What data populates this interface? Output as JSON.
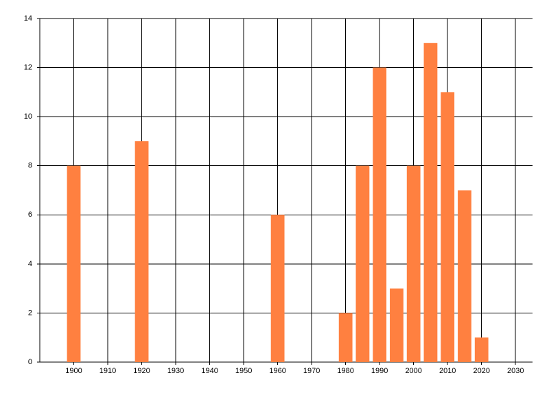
{
  "chart_data": {
    "type": "bar",
    "x": [
      1900,
      1920,
      1960,
      1980,
      1985,
      1990,
      1995,
      2000,
      2005,
      2010,
      2015,
      2020
    ],
    "values": [
      8,
      9,
      6,
      2,
      8,
      12,
      3,
      8,
      13,
      11,
      7,
      1
    ],
    "color": "#ff8040",
    "xlim": [
      1890,
      2035
    ],
    "xticks": [
      1900,
      1910,
      1920,
      1930,
      1940,
      1950,
      1960,
      1970,
      1980,
      1990,
      2000,
      2010,
      2020,
      2030
    ],
    "ylim": [
      0,
      14
    ],
    "yticks": [
      0,
      2,
      4,
      6,
      8,
      10,
      12,
      14
    ],
    "grid": true
  }
}
